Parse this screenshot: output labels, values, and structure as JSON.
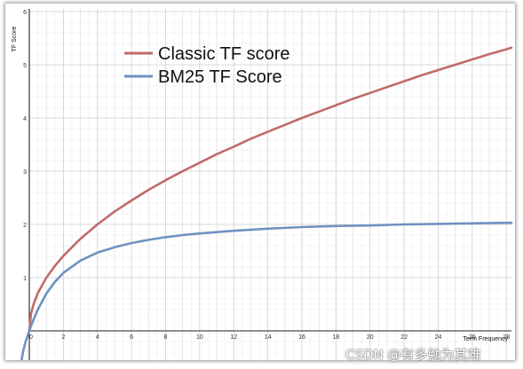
{
  "chart_data": {
    "type": "line",
    "title": "",
    "xlabel": "Term Frequency",
    "ylabel": "TF Score",
    "xlim": [
      0,
      28.3
    ],
    "ylim": [
      -0.55,
      6.05
    ],
    "grid": true,
    "legend_position": "top-left",
    "x_ticks": [
      "0",
      "2",
      "4",
      "6",
      "8",
      "10",
      "12",
      "14",
      "16",
      "18",
      "20",
      "22",
      "24",
      "26",
      "28"
    ],
    "y_ticks": [
      "1",
      "2",
      "3",
      "4",
      "5",
      "6"
    ],
    "series": [
      {
        "name": "Classic TF score",
        "color": "#c06b6b",
        "x": [
          0,
          0.1,
          0.25,
          0.5,
          1,
          1.5,
          2,
          3,
          4,
          5,
          6,
          7,
          8,
          9,
          10,
          11,
          12,
          13,
          14,
          15,
          16,
          17,
          18,
          19,
          20,
          21,
          22,
          23,
          24,
          25,
          26,
          27,
          28,
          28.3
        ],
        "y": [
          0,
          0.32,
          0.5,
          0.71,
          1,
          1.22,
          1.41,
          1.73,
          2,
          2.24,
          2.45,
          2.65,
          2.83,
          3,
          3.16,
          3.32,
          3.46,
          3.61,
          3.74,
          3.87,
          4,
          4.12,
          4.24,
          4.36,
          4.47,
          4.58,
          4.69,
          4.8,
          4.9,
          5,
          5.1,
          5.2,
          5.29,
          5.32
        ]
      },
      {
        "name": "BM25 TF Score",
        "color": "#6f92c0",
        "x": [
          -0.45,
          -0.42,
          -0.35,
          -0.25,
          -0.1,
          0,
          0.1,
          0.25,
          0.5,
          1,
          1.5,
          2,
          3,
          4,
          5,
          6,
          7,
          8,
          9,
          10,
          12,
          14,
          16,
          18,
          20,
          22,
          24,
          26,
          28,
          28.3
        ],
        "y": [
          -0.55,
          -0.49,
          -0.37,
          -0.24,
          -0.09,
          0,
          0.09,
          0.21,
          0.4,
          0.7,
          0.92,
          1.09,
          1.32,
          1.47,
          1.57,
          1.65,
          1.71,
          1.76,
          1.8,
          1.83,
          1.88,
          1.92,
          1.95,
          1.97,
          1.98,
          2.0,
          2.01,
          2.02,
          2.03,
          2.03
        ]
      }
    ]
  },
  "watermark": "CSDN @有多勉为其难"
}
